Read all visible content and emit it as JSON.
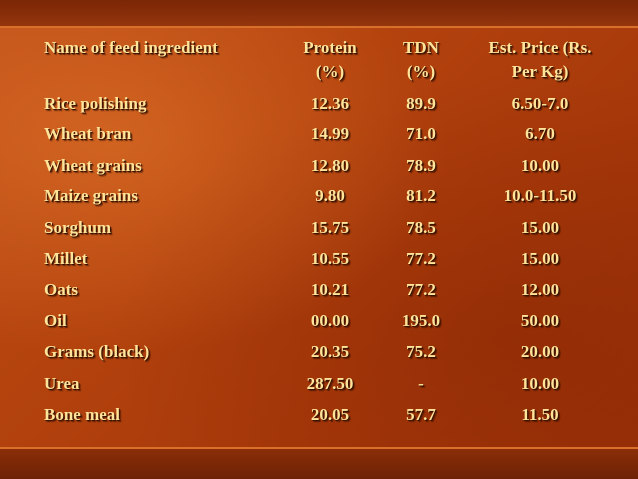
{
  "table": {
    "headers": {
      "name": "Name of feed ingredient",
      "protein_line1": "Protein",
      "protein_line2": "(%)",
      "tdn_line1": "TDN",
      "tdn_line2": "(%)",
      "price_line1": "Est. Price (Rs.",
      "price_line2": "Per Kg)"
    },
    "rows": [
      {
        "name": "Rice polishing",
        "protein": "12.36",
        "tdn": "89.9",
        "price": "6.50-7.0"
      },
      {
        "name": "Wheat bran",
        "protein": "14.99",
        "tdn": "71.0",
        "price": "6.70"
      },
      {
        "name": "Wheat grains",
        "protein": "12.80",
        "tdn": "78.9",
        "price": "10.00"
      },
      {
        "name": "Maize grains",
        "protein": "9.80",
        "tdn": "81.2",
        "price": "10.0-11.50"
      },
      {
        "name": "Sorghum",
        "protein": "15.75",
        "tdn": "78.5",
        "price": "15.00"
      },
      {
        "name": "Millet",
        "protein": "10.55",
        "tdn": "77.2",
        "price": "15.00"
      },
      {
        "name": "Oats",
        "protein": "10.21",
        "tdn": "77.2",
        "price": "12.00"
      },
      {
        "name": "Oil",
        "protein": "00.00",
        "tdn": "195.0",
        "price": "50.00"
      },
      {
        "name": "Grams (black)",
        "protein": "20.35",
        "tdn": "75.2",
        "price": "20.00"
      },
      {
        "name": "Urea",
        "protein": "287.50",
        "tdn": "-",
        "price": "10.00"
      },
      {
        "name": "Bone meal",
        "protein": "20.05",
        "tdn": "57.7",
        "price": "11.50"
      }
    ]
  },
  "colors": {
    "text": "#ffe49a",
    "background": "#b4430e",
    "band": "#7a2606"
  }
}
